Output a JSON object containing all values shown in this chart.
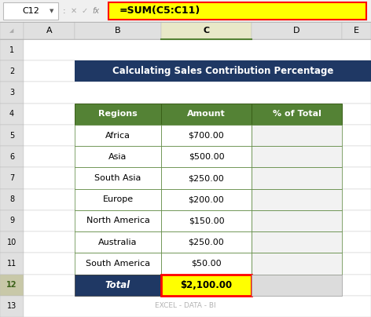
{
  "title": "Calculating Sales Contribution Percentage",
  "title_bg": "#1F3864",
  "title_color": "#FFFFFF",
  "header_bg": "#548235",
  "header_color": "#FFFFFF",
  "headers": [
    "Regions",
    "Amount",
    "% of Total"
  ],
  "rows": [
    [
      "Africa",
      "$700.00",
      ""
    ],
    [
      "Asia",
      "$500.00",
      ""
    ],
    [
      "South Asia",
      "$250.00",
      ""
    ],
    [
      "Europe",
      "$200.00",
      ""
    ],
    [
      "North America",
      "$150.00",
      ""
    ],
    [
      "Australia",
      "$250.00",
      ""
    ],
    [
      "South America",
      "$50.00",
      ""
    ]
  ],
  "total_label": "Total",
  "total_value": "$2,100.00",
  "total_row_bg": "#1F3864",
  "total_row_color": "#FFFFFF",
  "total_cell_bg": "#FFFF00",
  "total_cell_border": "#FF0000",
  "formula_bar_text": "=SUM(C5:C11)",
  "formula_bar_bg": "#FFFF00",
  "formula_bar_border": "#FF0000",
  "cell_ref": "C12",
  "fig_bg": "#D3D3D3",
  "excel_bg": "#FFFFFF",
  "grid_line_color": "#C8C8C8",
  "col_header_bg": "#E0E0E0",
  "col_header_selected_bg": "#E8E8C8",
  "row_header_bg": "#E0E0E0",
  "row_header_selected_bg": "#C8C8A8",
  "watermark": "EXCEL - DATA - BI",
  "table_border": "#548235",
  "data_row_bg": "#FFFFFF",
  "pct_col_bg": "#F2F2F2"
}
